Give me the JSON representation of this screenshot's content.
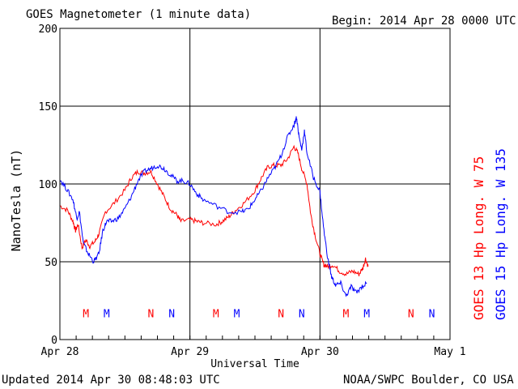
{
  "header": {
    "title": "GOES Magnetometer (1 minute data)",
    "begin": "Begin:  2014 Apr 28 0000 UTC"
  },
  "footer": {
    "updated": "Updated 2014 Apr 30 08:48:03 UTC",
    "credit": "NOAA/SWPC Boulder, CO USA"
  },
  "chart_data": {
    "type": "line",
    "title": "GOES Magnetometer (1 minute data)",
    "xlabel": "Universal Time",
    "ylabel": "NanoTesla (nT)",
    "xlim": [
      0,
      3
    ],
    "ylim": [
      0,
      200
    ],
    "x_ticks": [
      {
        "value": 0,
        "label": "Apr 28"
      },
      {
        "value": 1,
        "label": "Apr 29"
      },
      {
        "value": 2,
        "label": "Apr 30"
      },
      {
        "value": 3,
        "label": "May 1"
      }
    ],
    "y_ticks": [
      0,
      50,
      100,
      150,
      200
    ],
    "grid": true,
    "legend_position": "right",
    "series": [
      {
        "name": "GOES 13 Hp  Long. W 75",
        "color": "#ff0000",
        "points": [
          [
            0.0,
            86
          ],
          [
            0.06,
            83
          ],
          [
            0.1,
            76
          ],
          [
            0.12,
            70
          ],
          [
            0.14,
            74
          ],
          [
            0.17,
            59
          ],
          [
            0.2,
            64
          ],
          [
            0.23,
            60
          ],
          [
            0.27,
            63
          ],
          [
            0.3,
            68
          ],
          [
            0.35,
            82
          ],
          [
            0.42,
            88
          ],
          [
            0.5,
            96
          ],
          [
            0.55,
            104
          ],
          [
            0.6,
            108
          ],
          [
            0.65,
            107
          ],
          [
            0.7,
            108
          ],
          [
            0.75,
            100
          ],
          [
            0.8,
            92
          ],
          [
            0.85,
            84
          ],
          [
            0.9,
            80
          ],
          [
            0.93,
            76
          ],
          [
            1.0,
            77
          ],
          [
            1.05,
            76
          ],
          [
            1.1,
            75
          ],
          [
            1.2,
            74
          ],
          [
            1.25,
            76
          ],
          [
            1.3,
            79
          ],
          [
            1.35,
            83
          ],
          [
            1.42,
            88
          ],
          [
            1.5,
            96
          ],
          [
            1.55,
            104
          ],
          [
            1.6,
            111
          ],
          [
            1.65,
            112
          ],
          [
            1.7,
            112
          ],
          [
            1.75,
            116
          ],
          [
            1.8,
            124
          ],
          [
            1.83,
            120
          ],
          [
            1.86,
            110
          ],
          [
            1.9,
            100
          ],
          [
            1.93,
            80
          ],
          [
            1.96,
            68
          ],
          [
            2.0,
            55
          ],
          [
            2.03,
            48
          ],
          [
            2.06,
            47
          ],
          [
            2.1,
            48
          ],
          [
            2.15,
            44
          ],
          [
            2.2,
            42
          ],
          [
            2.25,
            44
          ],
          [
            2.3,
            42
          ],
          [
            2.33,
            46
          ],
          [
            2.35,
            52
          ],
          [
            2.37,
            47
          ]
        ]
      },
      {
        "name": "GOES 15 Hp  Long. W 135",
        "color": "#0000ff",
        "points": [
          [
            0.0,
            103
          ],
          [
            0.05,
            97
          ],
          [
            0.1,
            90
          ],
          [
            0.13,
            78
          ],
          [
            0.15,
            82
          ],
          [
            0.18,
            62
          ],
          [
            0.22,
            55
          ],
          [
            0.26,
            50
          ],
          [
            0.3,
            55
          ],
          [
            0.33,
            70
          ],
          [
            0.36,
            76
          ],
          [
            0.4,
            76
          ],
          [
            0.45,
            78
          ],
          [
            0.5,
            84
          ],
          [
            0.55,
            92
          ],
          [
            0.6,
            102
          ],
          [
            0.65,
            108
          ],
          [
            0.7,
            110
          ],
          [
            0.75,
            112
          ],
          [
            0.8,
            110
          ],
          [
            0.85,
            106
          ],
          [
            0.9,
            102
          ],
          [
            0.95,
            102
          ],
          [
            1.0,
            100
          ],
          [
            1.05,
            94
          ],
          [
            1.1,
            90
          ],
          [
            1.2,
            86
          ],
          [
            1.3,
            82
          ],
          [
            1.4,
            82
          ],
          [
            1.45,
            84
          ],
          [
            1.5,
            90
          ],
          [
            1.55,
            96
          ],
          [
            1.6,
            104
          ],
          [
            1.65,
            110
          ],
          [
            1.7,
            118
          ],
          [
            1.75,
            130
          ],
          [
            1.8,
            138
          ],
          [
            1.82,
            143
          ],
          [
            1.84,
            130
          ],
          [
            1.86,
            122
          ],
          [
            1.88,
            134
          ],
          [
            1.9,
            120
          ],
          [
            1.95,
            104
          ],
          [
            2.0,
            95
          ],
          [
            2.03,
            70
          ],
          [
            2.06,
            52
          ],
          [
            2.09,
            40
          ],
          [
            2.12,
            35
          ],
          [
            2.16,
            36
          ],
          [
            2.2,
            28
          ],
          [
            2.24,
            34
          ],
          [
            2.28,
            30
          ],
          [
            2.32,
            34
          ],
          [
            2.36,
            36
          ]
        ]
      }
    ],
    "markers": [
      {
        "x": 0.2,
        "label": "M",
        "color": "#ff0000"
      },
      {
        "x": 0.36,
        "label": "M",
        "color": "#0000ff"
      },
      {
        "x": 0.7,
        "label": "N",
        "color": "#ff0000"
      },
      {
        "x": 0.86,
        "label": "N",
        "color": "#0000ff"
      },
      {
        "x": 1.2,
        "label": "M",
        "color": "#ff0000"
      },
      {
        "x": 1.36,
        "label": "M",
        "color": "#0000ff"
      },
      {
        "x": 1.7,
        "label": "N",
        "color": "#ff0000"
      },
      {
        "x": 1.86,
        "label": "N",
        "color": "#0000ff"
      },
      {
        "x": 2.2,
        "label": "M",
        "color": "#ff0000"
      },
      {
        "x": 2.36,
        "label": "M",
        "color": "#0000ff"
      },
      {
        "x": 2.7,
        "label": "N",
        "color": "#ff0000"
      },
      {
        "x": 2.86,
        "label": "N",
        "color": "#0000ff"
      }
    ],
    "marker_y": 17
  }
}
